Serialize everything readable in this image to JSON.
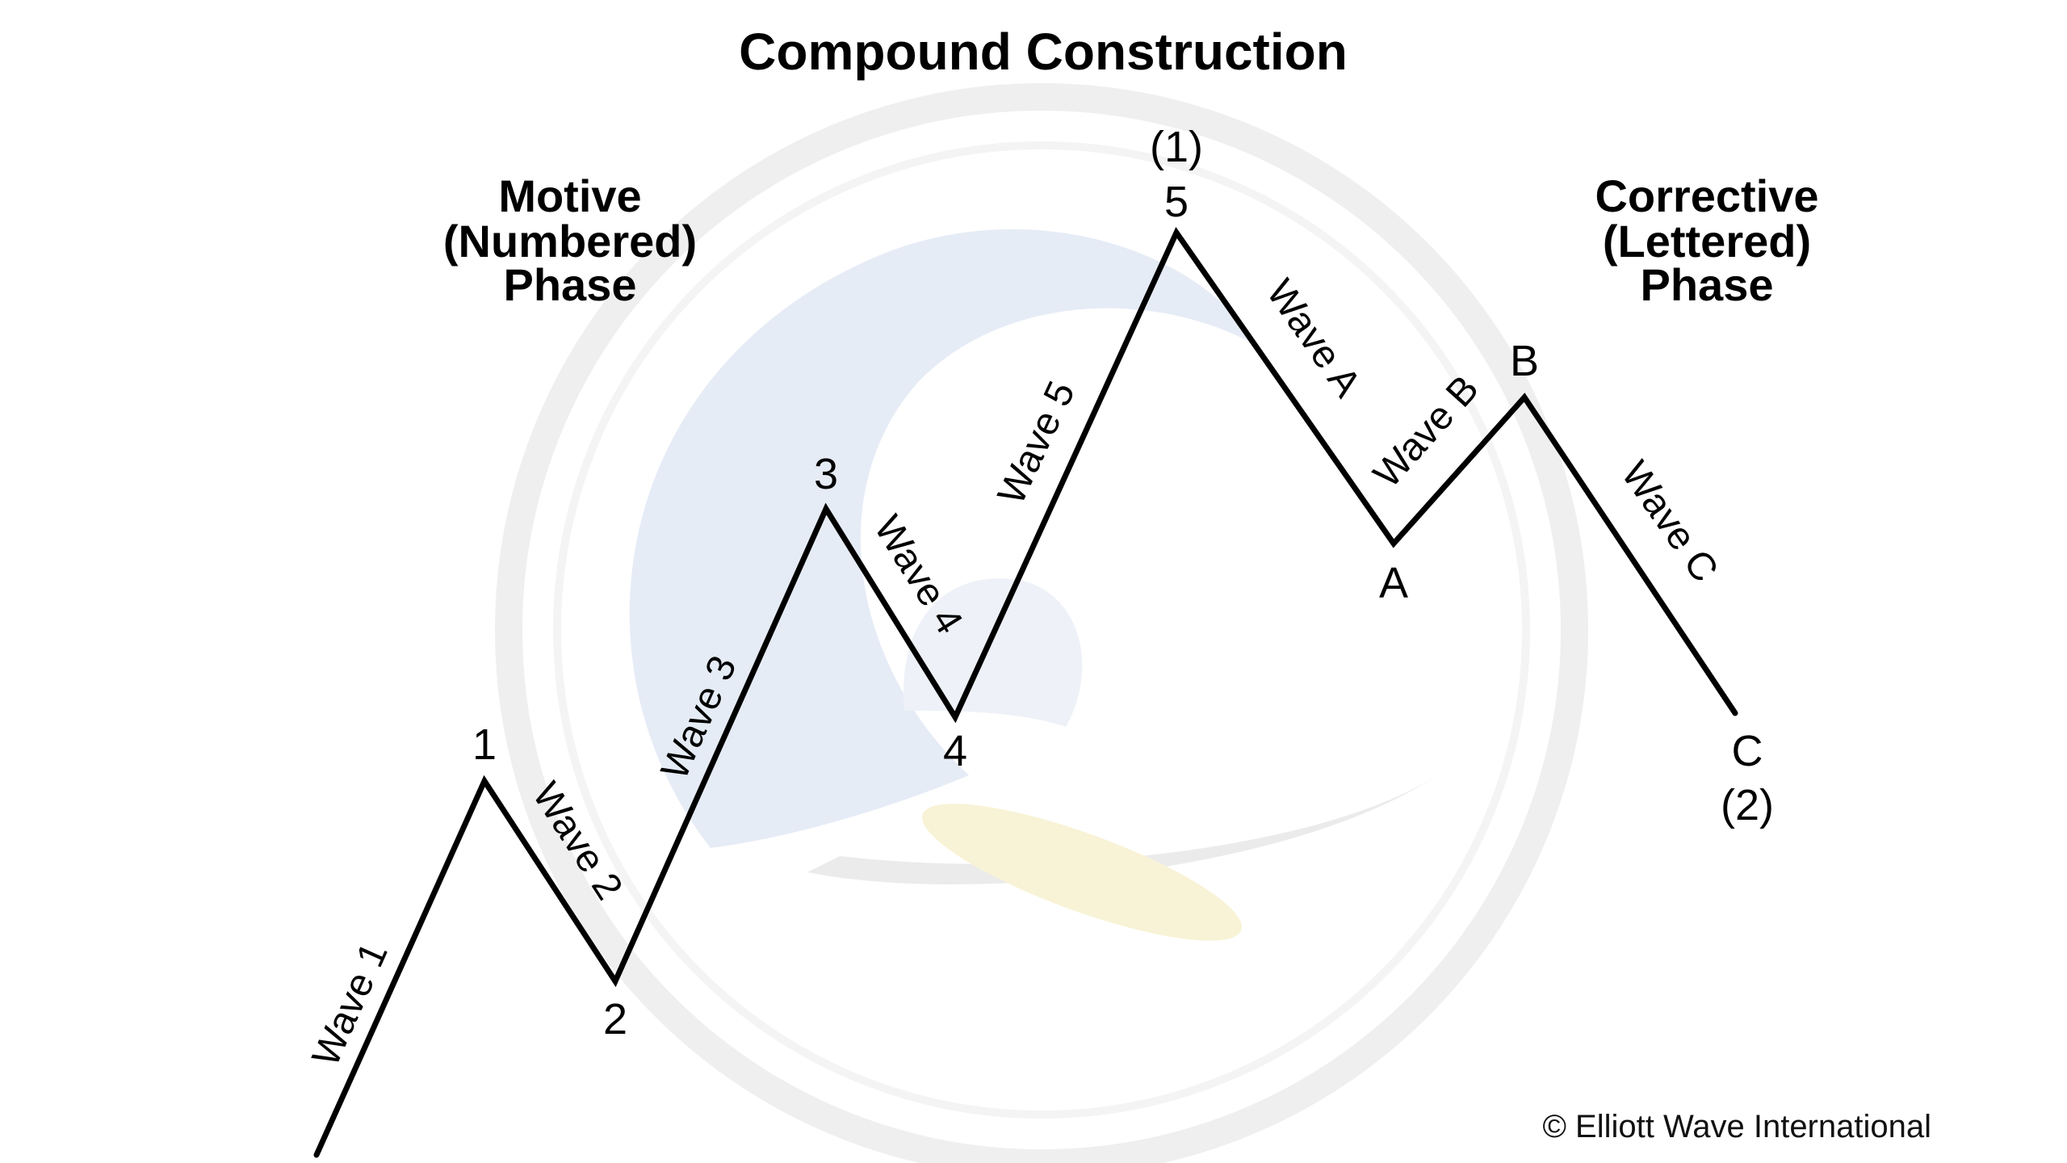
{
  "title": "Compound Construction",
  "motive_phase": {
    "line1": "Motive",
    "line2": "(Numbered)",
    "line3": "Phase"
  },
  "corrective_phase": {
    "line1": "Corrective",
    "line2": "(Lettered)",
    "line3": "Phase"
  },
  "points": {
    "p1": "1",
    "p2": "2",
    "p3": "3",
    "p4": "4",
    "p5": "5",
    "p5_degree": "(1)",
    "pA": "A",
    "pB": "B",
    "pC": "C",
    "pC_degree": "(2)"
  },
  "waves": {
    "w1": "Wave 1",
    "w2": "Wave 2",
    "w3": "Wave 3",
    "w4": "Wave 4",
    "w5": "Wave 5",
    "wA": "Wave A",
    "wB": "Wave B",
    "wC": "Wave C"
  },
  "copyright": "© Elliott Wave International",
  "colors": {
    "line": "#000000",
    "watermark_ring": "#d8d8d8",
    "watermark_wave": "#c9d6ec",
    "watermark_board": "#f1e6a8"
  }
}
